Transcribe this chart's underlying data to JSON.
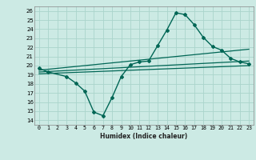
{
  "xlabel": "Humidex (Indice chaleur)",
  "bg_color": "#cceae4",
  "grid_color": "#aad4cc",
  "line_color": "#006655",
  "xlim": [
    -0.5,
    23.5
  ],
  "ylim": [
    13.5,
    26.5
  ],
  "yticks": [
    14,
    15,
    16,
    17,
    18,
    19,
    20,
    21,
    22,
    23,
    24,
    25,
    26
  ],
  "xticks": [
    0,
    1,
    2,
    3,
    4,
    5,
    6,
    7,
    8,
    9,
    10,
    11,
    12,
    13,
    14,
    15,
    16,
    17,
    18,
    19,
    20,
    21,
    22,
    23
  ],
  "curve1_x": [
    0,
    1,
    3,
    4,
    5,
    6,
    7,
    8,
    9,
    10,
    11,
    12,
    13,
    14,
    15,
    16,
    17,
    18,
    19,
    20,
    21,
    22,
    23
  ],
  "curve1_y": [
    19.7,
    19.3,
    18.8,
    18.1,
    17.2,
    14.9,
    14.5,
    16.5,
    18.8,
    20.1,
    20.4,
    20.5,
    22.2,
    23.9,
    25.8,
    25.6,
    24.5,
    23.1,
    22.1,
    21.7,
    20.8,
    20.4,
    20.2
  ],
  "line2_x": [
    0,
    23
  ],
  "line2_y": [
    19.5,
    21.8
  ],
  "line3_x": [
    0,
    23
  ],
  "line3_y": [
    19.3,
    20.5
  ],
  "line4_x": [
    0,
    23
  ],
  "line4_y": [
    19.1,
    20.0
  ]
}
